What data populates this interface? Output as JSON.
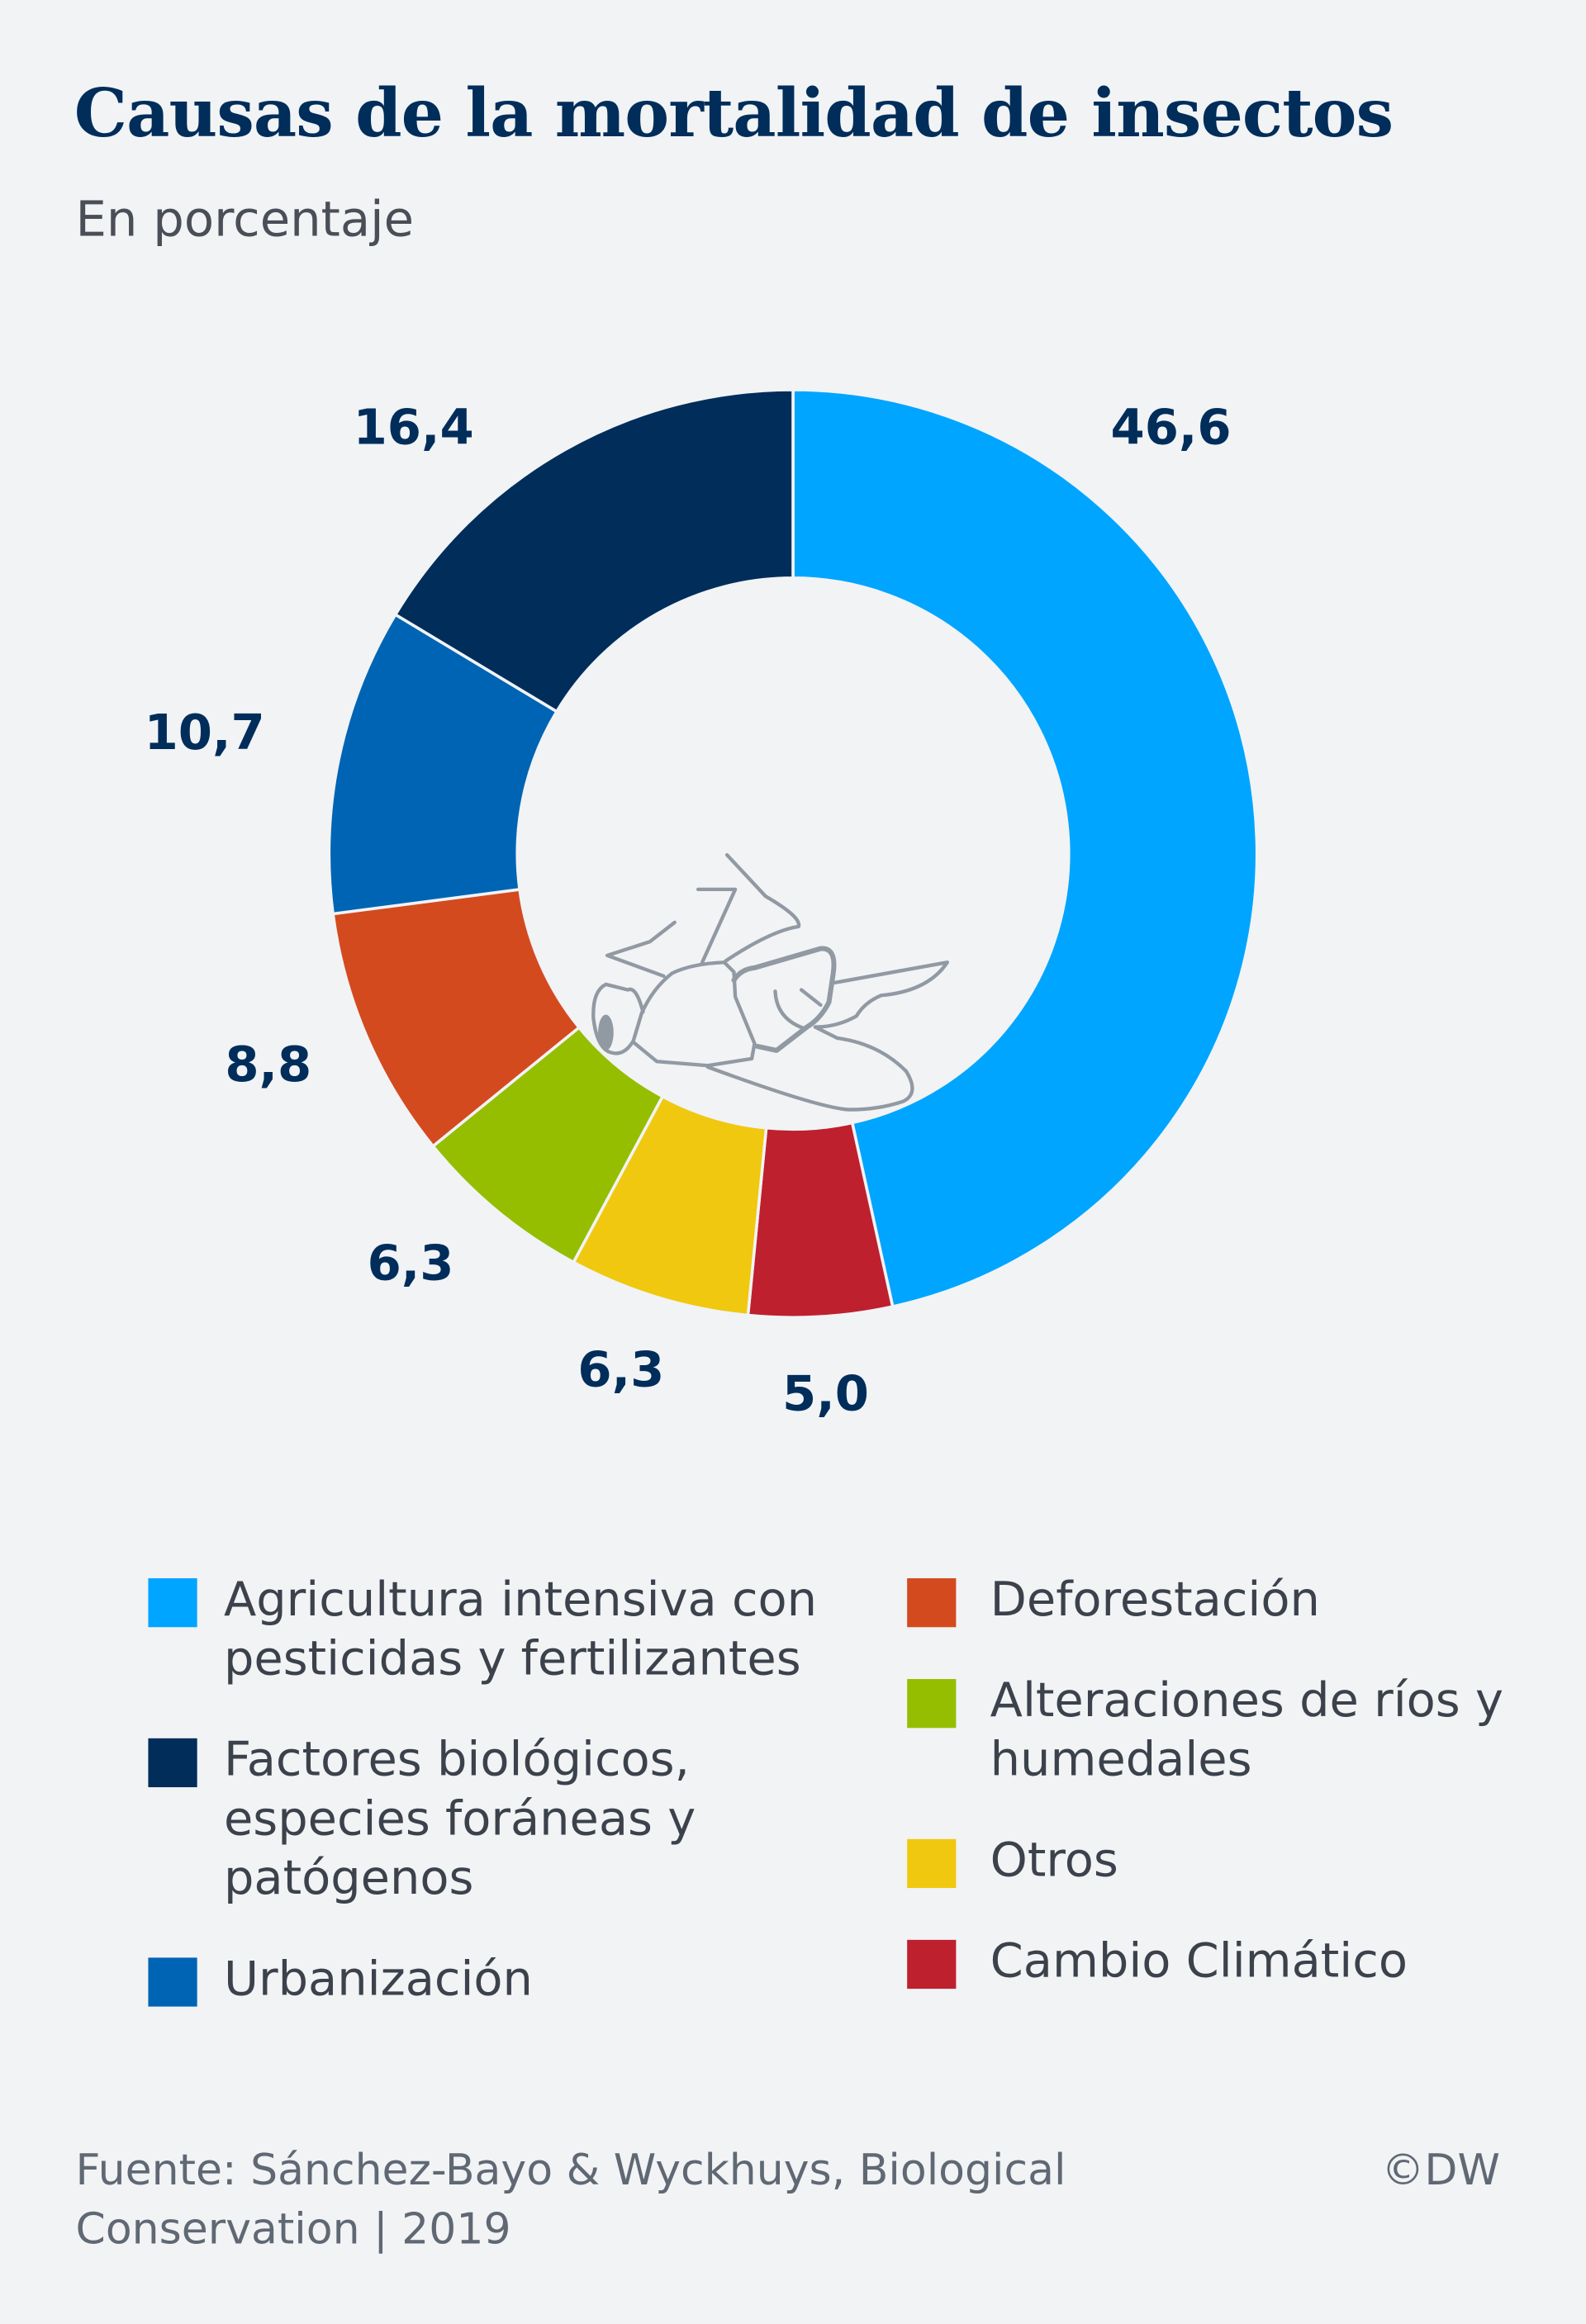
{
  "title": "Causas de la mortalidad de insectos",
  "subtitle": "En porcentaje",
  "chart_data": {
    "type": "pie",
    "variant": "donut",
    "title": "Causas de la mortalidad de insectos",
    "subtitle": "En porcentaje",
    "start": "top",
    "direction": "clockwise",
    "slices": [
      {
        "name": "Agricultura intensiva con pesticidas y fertilizantes",
        "value": 46.6,
        "label": "46,6",
        "color": "#00a5ff"
      },
      {
        "name": "Cambio Climático",
        "value": 5.0,
        "label": "5,0",
        "color": "#be202e"
      },
      {
        "name": "Otros",
        "value": 6.3,
        "label": "6,3",
        "color": "#f0c80f"
      },
      {
        "name": "Alteraciones de ríos y humedales",
        "value": 6.3,
        "label": "6,3",
        "color": "#96be00"
      },
      {
        "name": "Deforestación",
        "value": 8.8,
        "label": "8,8",
        "color": "#d44a1f"
      },
      {
        "name": "Urbanización",
        "value": 10.7,
        "label": "10,7",
        "color": "#0064b4"
      },
      {
        "name": "Factores biológicos, especies foráneas y patógenos",
        "value": 16.4,
        "label": "16,4",
        "color": "#002d5a"
      }
    ],
    "legend_placement": "bottom",
    "center_icon": "insect-icon"
  },
  "footer": {
    "source": "Fuente: Sánchez-Bayo & Wyckhuys, Biological Conservation | 2019",
    "copyright": "©DW"
  }
}
